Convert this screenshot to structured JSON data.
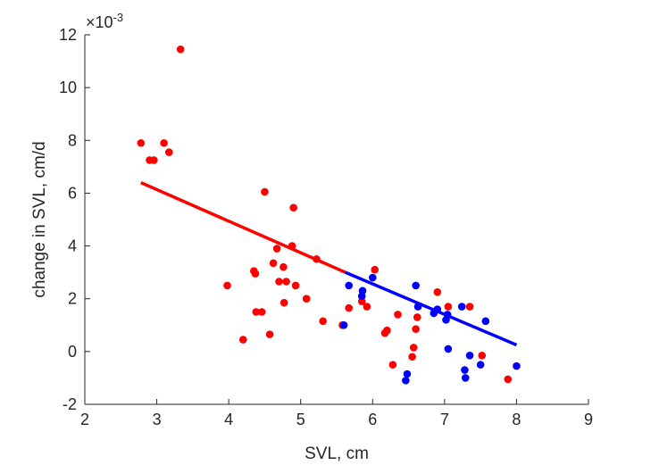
{
  "chart_data": {
    "type": "scatter",
    "title": "",
    "xlabel": "SVL, cm",
    "ylabel": "change in SVL, cm/d",
    "y_exponent_label": "×10-3",
    "y_exponent_base": "×10",
    "y_exponent_power": "-3",
    "xlim": [
      2,
      9
    ],
    "ylim": [
      -2,
      12
    ],
    "xticks": [
      2,
      3,
      4,
      5,
      6,
      7,
      8,
      9
    ],
    "yticks": [
      -2,
      0,
      2,
      4,
      6,
      8,
      10,
      12
    ],
    "grid": false,
    "legend": "none",
    "series": [
      {
        "color": "#ff0000",
        "points": [
          [
            2.78,
            7.9
          ],
          [
            2.9,
            7.25
          ],
          [
            2.96,
            7.25
          ],
          [
            3.1,
            7.9
          ],
          [
            3.17,
            7.55
          ],
          [
            3.33,
            11.45
          ],
          [
            3.98,
            2.5
          ],
          [
            4.2,
            0.45
          ],
          [
            4.35,
            3.05
          ],
          [
            4.37,
            2.95
          ],
          [
            4.38,
            1.5
          ],
          [
            4.46,
            1.5
          ],
          [
            4.5,
            6.05
          ],
          [
            4.57,
            0.65
          ],
          [
            4.62,
            3.35
          ],
          [
            4.67,
            3.9
          ],
          [
            4.7,
            2.65
          ],
          [
            4.76,
            3.2
          ],
          [
            4.77,
            1.85
          ],
          [
            4.8,
            2.65
          ],
          [
            4.88,
            4.0
          ],
          [
            4.9,
            5.45
          ],
          [
            4.93,
            2.5
          ],
          [
            5.08,
            2.0
          ],
          [
            5.22,
            3.5
          ],
          [
            5.31,
            1.15
          ],
          [
            5.58,
            1.0
          ],
          [
            5.67,
            1.65
          ],
          [
            5.85,
            1.9
          ],
          [
            5.92,
            1.7
          ],
          [
            6.03,
            3.1
          ],
          [
            6.17,
            0.7
          ],
          [
            6.2,
            0.8
          ],
          [
            6.28,
            -0.5
          ],
          [
            6.35,
            1.4
          ],
          [
            6.55,
            -0.2
          ],
          [
            6.57,
            0.15
          ],
          [
            6.6,
            0.85
          ],
          [
            6.62,
            1.3
          ],
          [
            6.9,
            2.25
          ],
          [
            7.05,
            1.7
          ],
          [
            7.35,
            1.7
          ],
          [
            7.52,
            -0.15
          ],
          [
            7.88,
            -1.05
          ]
        ],
        "fit_line": {
          "x": [
            2.78,
            5.62
          ],
          "y": [
            6.4,
            3.0
          ]
        }
      },
      {
        "color": "#0000ff",
        "points": [
          [
            5.6,
            1.0
          ],
          [
            5.67,
            2.5
          ],
          [
            5.85,
            2.1
          ],
          [
            5.86,
            2.3
          ],
          [
            6.0,
            2.8
          ],
          [
            6.46,
            -1.1
          ],
          [
            6.48,
            -0.85
          ],
          [
            6.6,
            2.5
          ],
          [
            6.63,
            1.7
          ],
          [
            6.85,
            1.45
          ],
          [
            6.9,
            1.6
          ],
          [
            7.02,
            1.2
          ],
          [
            7.04,
            1.4
          ],
          [
            7.05,
            0.1
          ],
          [
            7.24,
            1.7
          ],
          [
            7.28,
            -0.7
          ],
          [
            7.29,
            -1.0
          ],
          [
            7.35,
            -0.15
          ],
          [
            7.5,
            -0.5
          ],
          [
            7.57,
            1.15
          ],
          [
            8.0,
            -0.55
          ]
        ],
        "fit_line": {
          "x": [
            5.62,
            8.0
          ],
          "y": [
            3.0,
            0.25
          ]
        }
      }
    ]
  }
}
